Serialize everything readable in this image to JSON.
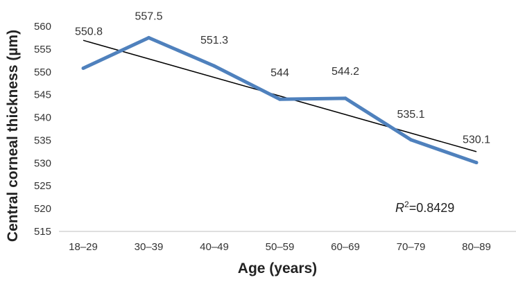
{
  "chart_data": {
    "type": "line",
    "categories": [
      "18–29",
      "30–39",
      "40–49",
      "50–59",
      "60–69",
      "70–79",
      "80–89"
    ],
    "series": [
      {
        "values": [
          550.8,
          557.5,
          551.3,
          544,
          544.2,
          535.1,
          530.1
        ],
        "data_labels": [
          "550.8",
          "557.5",
          "551.3",
          "544",
          "544.2",
          "535.1",
          "530.1"
        ],
        "color": "#4f81bd"
      }
    ],
    "trendline": {
      "type": "linear",
      "color": "#000000",
      "r2_label_var": "R",
      "r2_label_sup": "2",
      "r2_label_value": "=0.8429"
    },
    "xlabel": "Age (years)",
    "ylabel": "Central corneal thickness (µm)",
    "ylim": [
      515,
      560
    ],
    "yticks": [
      515,
      520,
      525,
      530,
      535,
      540,
      545,
      550,
      555,
      560
    ],
    "grid": false,
    "legend": "none"
  }
}
